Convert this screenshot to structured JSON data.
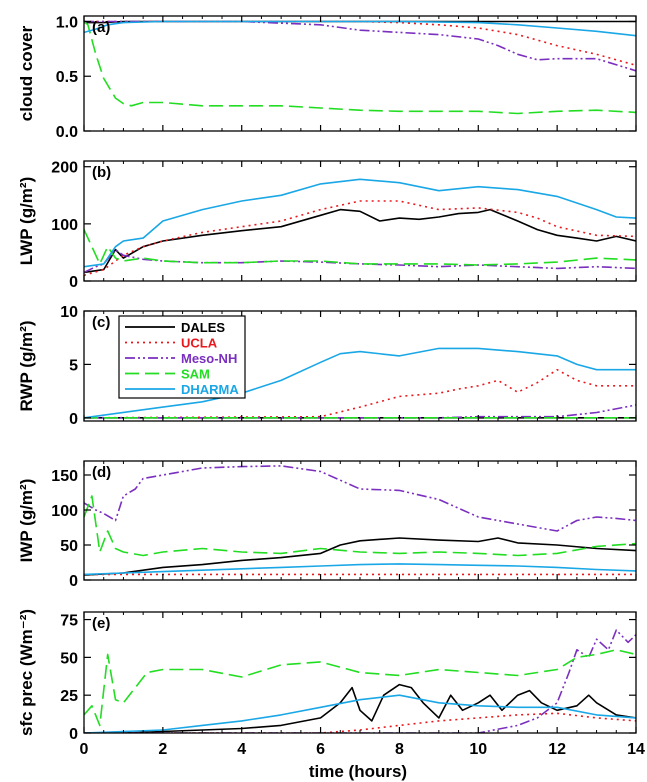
{
  "figure": {
    "xlabel": "time (hours)",
    "x_ticks": [
      0,
      2,
      4,
      6,
      8,
      10,
      12,
      14
    ],
    "xlim": [
      0,
      14
    ]
  },
  "legend": {
    "placement": "panel c, top-left",
    "entries": [
      {
        "name": "DALES",
        "color": "#000000",
        "dash": "solid"
      },
      {
        "name": "UCLA",
        "color": "#e8191e",
        "dash": "dotted"
      },
      {
        "name": "Meso-NH",
        "color": "#7b2fbe",
        "dash": "dash-dot-dot"
      },
      {
        "name": "SAM",
        "color": "#22dd22",
        "dash": "long-dash"
      },
      {
        "name": "DHARMA",
        "color": "#1aa7e6",
        "dash": "solid"
      }
    ]
  },
  "chart_data": [
    {
      "type": "line",
      "panel_label": "(a)",
      "ylabel": "cloud cover",
      "ylim": [
        0,
        1.05
      ],
      "y_ticks": [
        0.0,
        0.5,
        1.0
      ],
      "y_tick_labels": [
        "0.0",
        "0.5",
        "1.0"
      ],
      "series": [
        {
          "name": "DALES",
          "x": [
            0,
            0.5,
            1,
            14
          ],
          "y": [
            0.99,
            0.99,
            1.0,
            1.0
          ]
        },
        {
          "name": "UCLA",
          "x": [
            0,
            2,
            4,
            6,
            7,
            8,
            9,
            10,
            11,
            12,
            13,
            14
          ],
          "y": [
            1.0,
            1.0,
            1.0,
            1.0,
            1.0,
            0.99,
            0.97,
            0.94,
            0.88,
            0.78,
            0.7,
            0.6
          ]
        },
        {
          "name": "Meso-NH",
          "x": [
            0,
            2,
            4,
            6,
            7,
            8,
            9,
            10,
            10.5,
            11,
            11.5,
            12,
            12.5,
            13,
            14
          ],
          "y": [
            1.0,
            1.0,
            1.0,
            0.97,
            0.92,
            0.9,
            0.88,
            0.84,
            0.78,
            0.7,
            0.65,
            0.66,
            0.66,
            0.66,
            0.55
          ]
        },
        {
          "name": "SAM",
          "x": [
            0,
            0.1,
            0.3,
            0.5,
            0.8,
            1.0,
            1.2,
            1.5,
            2,
            3,
            4,
            5,
            6,
            7,
            8,
            9,
            10,
            11,
            12,
            13,
            14
          ],
          "y": [
            1.0,
            0.97,
            0.7,
            0.48,
            0.3,
            0.25,
            0.23,
            0.26,
            0.26,
            0.23,
            0.23,
            0.23,
            0.21,
            0.19,
            0.18,
            0.18,
            0.18,
            0.16,
            0.18,
            0.19,
            0.17
          ]
        },
        {
          "name": "DHARMA",
          "x": [
            0,
            0.3,
            0.6,
            1.0,
            2,
            4,
            6,
            8,
            10,
            11,
            12,
            13,
            14
          ],
          "y": [
            0.9,
            0.93,
            0.97,
            0.99,
            1.0,
            1.0,
            1.0,
            1.0,
            0.99,
            0.97,
            0.94,
            0.91,
            0.87
          ]
        }
      ]
    },
    {
      "type": "line",
      "panel_label": "(b)",
      "ylabel": "LWP (g/m²)",
      "ylim": [
        0,
        210
      ],
      "y_ticks": [
        0,
        100,
        200
      ],
      "y_tick_labels": [
        "0",
        "100",
        "200"
      ],
      "series": [
        {
          "name": "DALES",
          "x": [
            0,
            0.5,
            0.8,
            1.0,
            1.5,
            2,
            3,
            4,
            5,
            6,
            6.5,
            7,
            7.5,
            8,
            8.5,
            9,
            9.5,
            10,
            10.3,
            11,
            11.5,
            12,
            12.5,
            13,
            13.5,
            14
          ],
          "y": [
            15,
            20,
            55,
            40,
            60,
            70,
            80,
            88,
            95,
            115,
            125,
            122,
            105,
            110,
            108,
            112,
            118,
            120,
            125,
            105,
            90,
            80,
            75,
            70,
            78,
            70
          ]
        },
        {
          "name": "UCLA",
          "x": [
            0,
            0.5,
            1,
            1.5,
            2,
            3,
            4,
            5,
            6,
            7,
            8,
            9,
            10,
            11,
            11.5,
            12,
            13,
            14
          ],
          "y": [
            10,
            20,
            45,
            60,
            70,
            85,
            95,
            105,
            125,
            140,
            140,
            125,
            128,
            120,
            110,
            95,
            80,
            78
          ]
        },
        {
          "name": "Meso-NH",
          "x": [
            0,
            0.3,
            0.5,
            0.8,
            1.0,
            1.5,
            2,
            3,
            4,
            5,
            6,
            7,
            8,
            9,
            10,
            11,
            12,
            13,
            14
          ],
          "y": [
            15,
            25,
            30,
            55,
            45,
            38,
            35,
            32,
            32,
            35,
            33,
            30,
            28,
            25,
            28,
            25,
            22,
            25,
            22
          ]
        },
        {
          "name": "SAM",
          "x": [
            0,
            0.2,
            0.4,
            0.6,
            0.8,
            1.0,
            1.5,
            2,
            3,
            4,
            5,
            6,
            7,
            8,
            9,
            10,
            11,
            12,
            13,
            14
          ],
          "y": [
            90,
            60,
            30,
            60,
            40,
            35,
            40,
            35,
            32,
            32,
            35,
            35,
            30,
            30,
            30,
            28,
            30,
            33,
            40,
            37
          ]
        },
        {
          "name": "DHARMA",
          "x": [
            0,
            0.5,
            0.8,
            1.0,
            1.5,
            2,
            3,
            4,
            5,
            6,
            7,
            8,
            9,
            10,
            11,
            12,
            13,
            13.5,
            14
          ],
          "y": [
            25,
            30,
            60,
            70,
            75,
            105,
            125,
            140,
            150,
            170,
            178,
            172,
            158,
            165,
            160,
            148,
            125,
            112,
            110
          ]
        }
      ]
    },
    {
      "type": "line",
      "panel_label": "(c)",
      "ylabel": "RWP (g/m²)",
      "ylim": [
        -0.3,
        10
      ],
      "y_ticks": [
        0,
        5,
        10
      ],
      "y_tick_labels": [
        "0",
        "5",
        "10"
      ],
      "series": [
        {
          "name": "DALES",
          "x": [
            0,
            14
          ],
          "y": [
            0,
            0
          ]
        },
        {
          "name": "UCLA",
          "x": [
            0,
            6,
            7,
            8,
            9,
            9.5,
            10,
            10.5,
            11,
            11.5,
            12,
            12.5,
            13,
            14
          ],
          "y": [
            0,
            0.1,
            1.0,
            2.0,
            2.3,
            2.7,
            3.0,
            3.5,
            2.4,
            3.3,
            4.5,
            3.5,
            3.0,
            3.0
          ]
        },
        {
          "name": "Meso-NH",
          "x": [
            0,
            9,
            10,
            11,
            12,
            13,
            14
          ],
          "y": [
            0,
            0,
            0.1,
            0.1,
            0.1,
            0.5,
            1.2
          ]
        },
        {
          "name": "SAM",
          "x": [
            0,
            14
          ],
          "y": [
            0,
            0
          ]
        },
        {
          "name": "DHARMA",
          "x": [
            0,
            2,
            3,
            4,
            5,
            6,
            6.5,
            7,
            8,
            9,
            10,
            11,
            12,
            12.5,
            13,
            14
          ],
          "y": [
            0,
            1.0,
            1.5,
            2.3,
            3.5,
            5.2,
            6.0,
            6.2,
            5.8,
            6.5,
            6.5,
            6.2,
            5.8,
            5.0,
            4.5,
            4.5
          ]
        }
      ]
    },
    {
      "type": "line",
      "panel_label": "(d)",
      "ylabel": "IWP (g/m²)",
      "ylim": [
        0,
        170
      ],
      "y_ticks": [
        0,
        50,
        100,
        150
      ],
      "y_tick_labels": [
        "0",
        "50",
        "100",
        "150"
      ],
      "series": [
        {
          "name": "DALES",
          "x": [
            0,
            1,
            2,
            3,
            4,
            5,
            6,
            6.5,
            7,
            8,
            9,
            10,
            10.5,
            11,
            12,
            13,
            14
          ],
          "y": [
            7,
            10,
            18,
            22,
            28,
            32,
            38,
            50,
            56,
            60,
            57,
            55,
            60,
            53,
            50,
            45,
            42
          ]
        },
        {
          "name": "UCLA",
          "x": [
            0,
            14
          ],
          "y": [
            8,
            8
          ]
        },
        {
          "name": "Meso-NH",
          "x": [
            0,
            0.3,
            0.5,
            0.8,
            1.0,
            1.3,
            1.5,
            2,
            3,
            4,
            5,
            6,
            7,
            8,
            9,
            10,
            11,
            12,
            12.5,
            13,
            13.5,
            14
          ],
          "y": [
            110,
            100,
            95,
            85,
            120,
            130,
            145,
            150,
            160,
            162,
            163,
            155,
            130,
            128,
            115,
            90,
            80,
            70,
            85,
            90,
            88,
            85
          ]
        },
        {
          "name": "SAM",
          "x": [
            0,
            0.2,
            0.4,
            0.6,
            0.8,
            1.0,
            1.5,
            2,
            3,
            4,
            5,
            6,
            7,
            8,
            9,
            10,
            11,
            12,
            13,
            14
          ],
          "y": [
            90,
            120,
            40,
            70,
            45,
            40,
            35,
            40,
            45,
            40,
            38,
            45,
            40,
            38,
            40,
            38,
            35,
            38,
            48,
            52
          ]
        },
        {
          "name": "DHARMA",
          "x": [
            0,
            1,
            2,
            3,
            4,
            5,
            6,
            7,
            8,
            9,
            10,
            11,
            12,
            13,
            14
          ],
          "y": [
            8,
            10,
            12,
            14,
            16,
            18,
            20,
            22,
            23,
            22,
            21,
            20,
            18,
            15,
            13
          ]
        }
      ]
    },
    {
      "type": "line",
      "panel_label": "(e)",
      "ylabel": "sfc prec (Wm⁻²)",
      "ylim": [
        0,
        80
      ],
      "y_ticks": [
        0,
        25,
        50,
        75
      ],
      "y_tick_labels": [
        "0",
        "25",
        "50",
        "75"
      ],
      "series": [
        {
          "name": "DALES",
          "x": [
            0,
            1,
            2,
            3,
            4,
            5,
            6,
            6.5,
            6.8,
            7.0,
            7.3,
            7.6,
            8.0,
            8.3,
            8.6,
            9.0,
            9.3,
            9.6,
            10.0,
            10.3,
            10.6,
            11.0,
            11.3,
            11.6,
            12.0,
            12.5,
            12.8,
            13.0,
            13.5,
            14
          ],
          "y": [
            0,
            0,
            1,
            2,
            3,
            5,
            10,
            20,
            30,
            15,
            8,
            25,
            32,
            30,
            20,
            10,
            25,
            15,
            20,
            25,
            15,
            25,
            28,
            20,
            15,
            18,
            25,
            20,
            12,
            10
          ]
        },
        {
          "name": "UCLA",
          "x": [
            0,
            6,
            7,
            8,
            9,
            10,
            11,
            12,
            13,
            14
          ],
          "y": [
            0,
            0,
            2,
            5,
            8,
            10,
            12,
            13,
            10,
            8
          ]
        },
        {
          "name": "Meso-NH",
          "x": [
            0,
            10,
            11,
            11.5,
            12,
            12.3,
            12.5,
            12.8,
            13.0,
            13.3,
            13.5,
            13.8,
            14
          ],
          "y": [
            0,
            0,
            5,
            10,
            20,
            40,
            55,
            50,
            62,
            55,
            68,
            60,
            65
          ]
        },
        {
          "name": "SAM",
          "x": [
            0,
            0.2,
            0.4,
            0.6,
            0.8,
            1.0,
            1.3,
            1.6,
            2,
            3,
            4,
            5,
            6,
            7,
            8,
            9,
            10,
            11,
            12,
            12.5,
            13,
            13.5,
            14
          ],
          "y": [
            12,
            18,
            5,
            52,
            22,
            20,
            30,
            40,
            42,
            42,
            37,
            45,
            47,
            40,
            38,
            42,
            40,
            38,
            42,
            50,
            52,
            55,
            52
          ]
        },
        {
          "name": "DHARMA",
          "x": [
            0,
            1,
            2,
            3,
            4,
            5,
            6,
            7,
            8,
            9,
            10,
            11,
            12,
            13,
            14
          ],
          "y": [
            0,
            1,
            2,
            5,
            8,
            12,
            17,
            22,
            25,
            20,
            18,
            17,
            17,
            12,
            10
          ]
        }
      ]
    }
  ]
}
